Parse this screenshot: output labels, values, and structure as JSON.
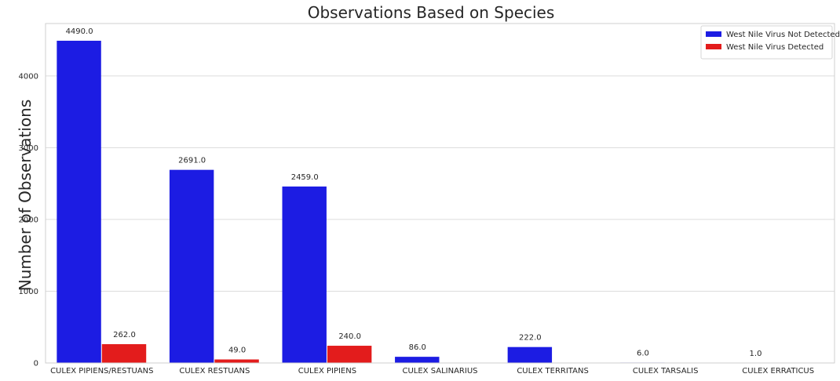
{
  "chart_data": {
    "type": "bar",
    "title": "Observations Based on Species",
    "xlabel": "",
    "ylabel": "Number of Observations",
    "ylim": [
      0,
      4730
    ],
    "yticks": [
      0,
      1000,
      2000,
      3000,
      4000
    ],
    "grid": "horizontal",
    "legend_position": "top-right",
    "categories": [
      "CULEX PIPIENS/RESTUANS",
      "CULEX RESTUANS",
      "CULEX PIPIENS",
      "CULEX SALINARIUS",
      "CULEX TERRITANS",
      "CULEX TARSALIS",
      "CULEX ERRATICUS"
    ],
    "series": [
      {
        "name": "West Nile Virus Not Detected",
        "color": "#1c1ce3",
        "values": [
          4490,
          2691,
          2459,
          86,
          222,
          6,
          1
        ],
        "labels": [
          "4490.0",
          "2691.0",
          "2459.0",
          "86.0",
          "222.0",
          "6.0",
          "1.0"
        ]
      },
      {
        "name": "West Nile Virus Detected",
        "color": "#e31c1c",
        "values": [
          262,
          49,
          240,
          null,
          null,
          null,
          null
        ],
        "labels": [
          "262.0",
          "49.0",
          "240.0",
          null,
          null,
          null,
          null
        ]
      }
    ]
  }
}
